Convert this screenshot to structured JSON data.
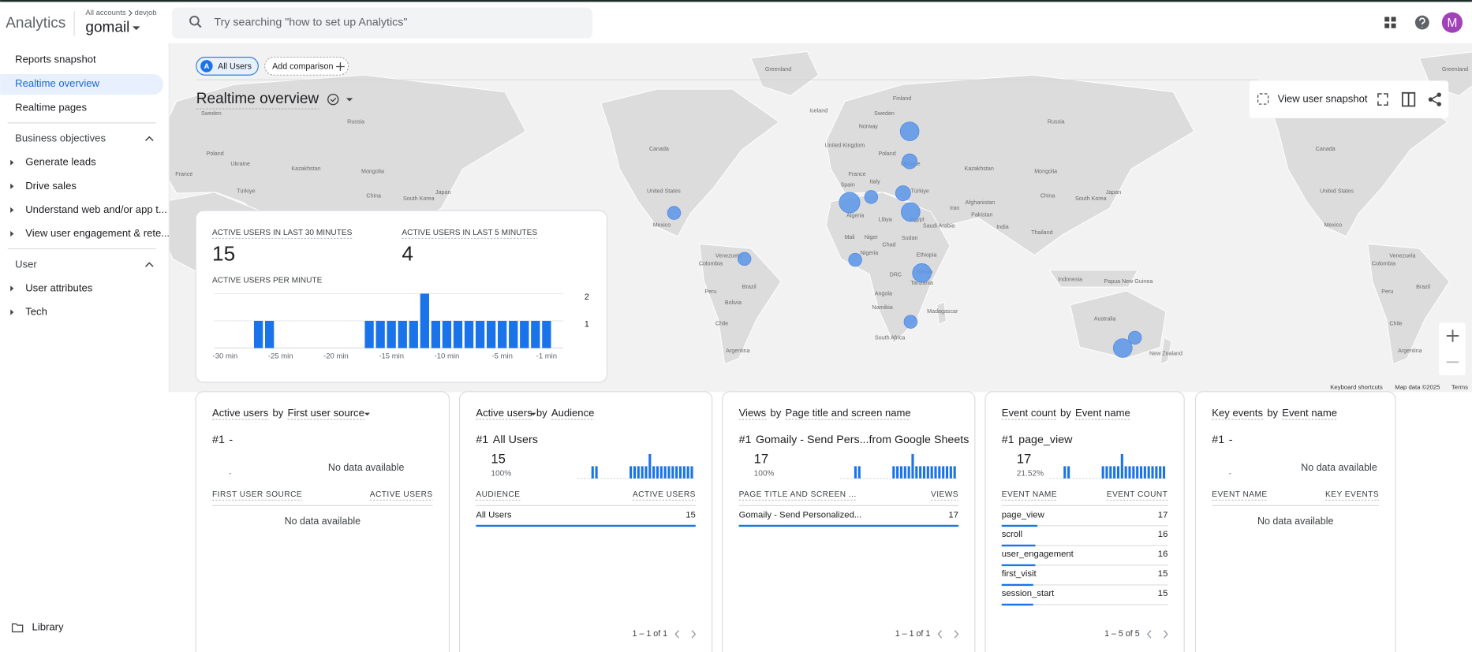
{
  "header": {
    "product": "Analytics",
    "account": "All accounts",
    "account_child": "devjob",
    "property": "gomail",
    "search": "Try searching \"how to set up Analytics\"",
    "avatar": "M"
  },
  "sidebar": {
    "top": [
      "Reports snapshot",
      "Realtime overview",
      "Realtime pages"
    ],
    "sections": [
      {
        "title": "Business objectives",
        "items": [
          "Generate leads",
          "Drive sales",
          "Understand web and/or app t...",
          "View user engagement & rete..."
        ]
      },
      {
        "title": "User",
        "items": [
          "User attributes",
          "Tech"
        ]
      }
    ],
    "library": "Library"
  },
  "toolbar": {
    "segment_badge": "A",
    "segment": "All Users",
    "add_comparison": "Add comparison",
    "title": "Realtime overview",
    "snapshot": "View user snapshot"
  },
  "map": {
    "labels": [
      "Greenland",
      "Iceland",
      "Sweden",
      "Norway",
      "Finland",
      "Russia",
      "Canada",
      "United States",
      "Mexico",
      "Venezuela",
      "Colombia",
      "Brazil",
      "Peru",
      "Bolivia",
      "Chile",
      "Argentina",
      "United Kingdom",
      "Poland",
      "Ukraine",
      "France",
      "Spain",
      "Italy",
      "Türkiye",
      "Algeria",
      "Libya",
      "Egypt",
      "Saudi Arabia",
      "Iran",
      "Afghanistan",
      "Pakistan",
      "India",
      "Kazakhstan",
      "Mongolia",
      "China",
      "South Korea",
      "Japan",
      "Thailand",
      "Mali",
      "Niger",
      "Chad",
      "Sudan",
      "Nigeria",
      "Ethiopia",
      "DRC",
      "Kenya",
      "Tanzania",
      "Angola",
      "Namibia",
      "South Africa",
      "Madagascar",
      "Indonesia",
      "Papua New Guinea",
      "Australia",
      "New Zealand",
      "Sweden",
      "Russia",
      "Poland",
      "Ukraine",
      "France",
      "Kazakhstan",
      "Mongolia",
      "Türkiye",
      "China",
      "South Korea",
      "Japan",
      "Greenland",
      "Canada",
      "United States",
      "Mexico",
      "Venezuela",
      "Colombia",
      "Brazil",
      "Peru",
      "Chile",
      "Argentina"
    ],
    "footer": [
      "Keyboard shortcuts",
      "Map data ©2025",
      "Terms"
    ]
  },
  "summary": {
    "users_30_label": "ACTIVE USERS IN LAST 30 MINUTES",
    "users_30": 15,
    "users_5_label": "ACTIVE USERS IN LAST 5 MINUTES",
    "users_5": 4
  },
  "chart_data": {
    "type": "bar",
    "title": "ACTIVE USERS PER MINUTE",
    "x": [
      -30,
      -29,
      -28,
      -27,
      -26,
      -25,
      -24,
      -23,
      -22,
      -21,
      -20,
      -19,
      -18,
      -17,
      -16,
      -15,
      -14,
      -13,
      -12,
      -11,
      -10,
      -9,
      -8,
      -7,
      -6,
      -5,
      -4,
      -3,
      -2,
      -1
    ],
    "values": [
      0,
      0,
      0,
      1,
      1,
      0,
      0,
      0,
      0,
      0,
      0,
      0,
      0,
      1,
      1,
      1,
      1,
      1,
      2,
      1,
      1,
      1,
      1,
      1,
      1,
      1,
      1,
      1,
      1,
      1
    ],
    "color": "#1a73e8",
    "xlim": [
      -31,
      0
    ],
    "xticks": [
      {
        "value": -30,
        "label": "-30 min"
      },
      {
        "value": -25,
        "label": "-25 min"
      },
      {
        "value": -20,
        "label": "-20 min"
      },
      {
        "value": -15,
        "label": "-15 min"
      },
      {
        "value": -10,
        "label": "-10 min"
      },
      {
        "value": -5,
        "label": "-5 min"
      },
      {
        "value": -1,
        "label": "-1 min"
      }
    ],
    "ylim": [
      0,
      2
    ],
    "yticks": [
      1,
      2
    ],
    "grid": true
  },
  "cards": [
    {
      "metric": "Active users",
      "by": "by",
      "dimension": "First user source",
      "rank": "#1",
      "top": "-",
      "top_value": "-",
      "no_data": "No data available",
      "columns": [
        "FIRST USER SOURCE",
        "ACTIVE USERS"
      ],
      "rows": [],
      "empty": "No data available"
    },
    {
      "metric": "Active users",
      "by": "by",
      "dimension": "Audience",
      "rank": "#1",
      "top": "All Users",
      "top_value": 15,
      "top_share": "100%",
      "columns": [
        "AUDIENCE",
        "ACTIVE USERS"
      ],
      "rows": [
        [
          "All Users",
          15
        ]
      ],
      "pagination": "1 – 1 of 1"
    },
    {
      "metric": "Views",
      "by": "by",
      "dimension": "Page title and screen name",
      "rank": "#1",
      "top": "Gomaily - Send Pers...from Google Sheets",
      "top_value": 17,
      "top_share": "100%",
      "columns": [
        "PAGE TITLE AND SCREEN ...",
        "VIEWS"
      ],
      "rows": [
        [
          "Gomaily - Send Personalized...",
          17
        ]
      ],
      "pagination": "1 – 1 of 1"
    },
    {
      "metric": "Event count",
      "by": "by",
      "dimension": "Event name",
      "rank": "#1",
      "top": "page_view",
      "top_value": 17,
      "top_share": "21.52%",
      "columns": [
        "EVENT NAME",
        "EVENT COUNT"
      ],
      "rows": [
        [
          "page_view",
          17
        ],
        [
          "scroll",
          16
        ],
        [
          "user_engagement",
          16
        ],
        [
          "first_visit",
          15
        ],
        [
          "session_start",
          15
        ]
      ],
      "pagination": "1 – 5 of 5"
    },
    {
      "metric": "Key events",
      "by": "by",
      "dimension": "Event name",
      "rank": "#1",
      "top": "-",
      "top_value": "-",
      "no_data": "No data available",
      "columns": [
        "EVENT NAME",
        "KEY EVENTS"
      ],
      "rows": [],
      "empty": "No data available"
    }
  ]
}
